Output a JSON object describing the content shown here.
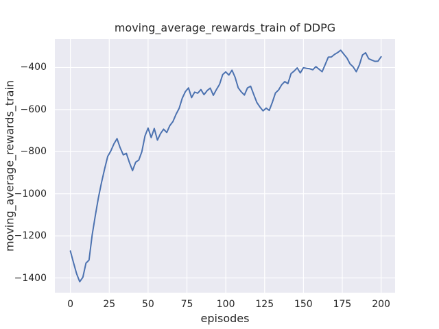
{
  "figure": {
    "title": "moving_average_rewards_train of DDPG",
    "background": "#ffffff"
  },
  "colors": {
    "axes_background": "#eaeaf2",
    "grid": "#ffffff",
    "line": "#4c72b0",
    "text": "#262626"
  },
  "chart_data": {
    "type": "line",
    "title": "moving_average_rewards_train of DDPG",
    "xlabel": "episodes",
    "ylabel": "moving_average_rewards_train",
    "x_ticks": [
      0,
      25,
      50,
      75,
      100,
      125,
      150,
      175,
      200
    ],
    "y_ticks": [
      -1400,
      -1200,
      -1000,
      -800,
      -600,
      -400
    ],
    "xlim": [
      -10,
      209
    ],
    "ylim": [
      -1470,
      -265
    ],
    "grid": true,
    "legend": false,
    "style": "seaborn-darkgrid",
    "series": [
      {
        "name": "moving_average_rewards_train",
        "color": "#4c72b0",
        "x": [
          0,
          2,
          4,
          6,
          8,
          10,
          12,
          14,
          16,
          18,
          20,
          22,
          24,
          26,
          28,
          30,
          32,
          34,
          36,
          38,
          40,
          42,
          44,
          46,
          48,
          50,
          52,
          54,
          56,
          58,
          60,
          62,
          64,
          66,
          68,
          70,
          72,
          74,
          76,
          78,
          80,
          82,
          84,
          86,
          88,
          90,
          92,
          94,
          96,
          98,
          100,
          102,
          104,
          106,
          108,
          110,
          112,
          114,
          116,
          118,
          120,
          122,
          124,
          126,
          128,
          130,
          132,
          134,
          136,
          138,
          140,
          142,
          144,
          146,
          148,
          150,
          152,
          154,
          156,
          158,
          160,
          162,
          164,
          166,
          168,
          170,
          172,
          174,
          176,
          178,
          180,
          182,
          184,
          186,
          188,
          190,
          192,
          194,
          196,
          198,
          200
        ],
        "y": [
          -1272,
          -1328,
          -1380,
          -1418,
          -1397,
          -1330,
          -1315,
          -1195,
          -1105,
          -1020,
          -948,
          -882,
          -823,
          -797,
          -763,
          -738,
          -781,
          -815,
          -808,
          -852,
          -890,
          -850,
          -840,
          -800,
          -725,
          -688,
          -733,
          -690,
          -745,
          -714,
          -693,
          -709,
          -676,
          -657,
          -622,
          -594,
          -546,
          -515,
          -497,
          -543,
          -517,
          -522,
          -505,
          -529,
          -510,
          -498,
          -532,
          -505,
          -480,
          -434,
          -421,
          -436,
          -413,
          -446,
          -497,
          -516,
          -531,
          -497,
          -489,
          -528,
          -566,
          -588,
          -606,
          -593,
          -604,
          -565,
          -521,
          -507,
          -482,
          -467,
          -477,
          -429,
          -417,
          -402,
          -426,
          -401,
          -404,
          -406,
          -411,
          -396,
          -408,
          -420,
          -386,
          -351,
          -350,
          -338,
          -329,
          -318,
          -337,
          -355,
          -383,
          -397,
          -420,
          -388,
          -341,
          -330,
          -358,
          -365,
          -371,
          -370,
          -349
        ]
      }
    ]
  }
}
